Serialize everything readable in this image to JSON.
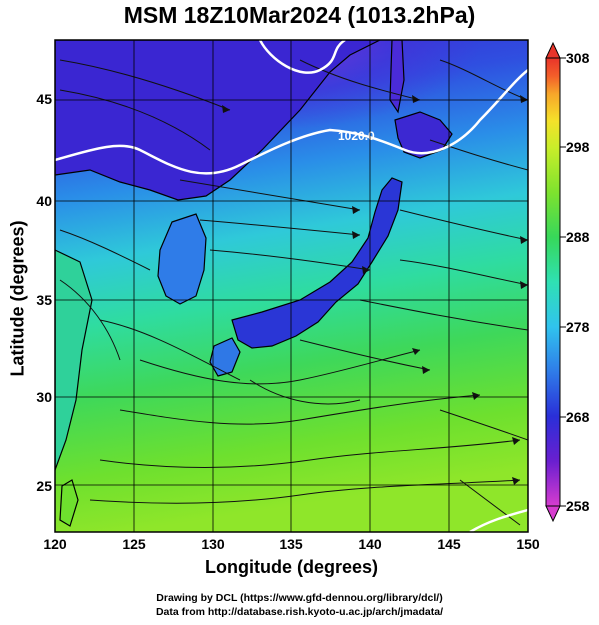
{
  "title": "MSM 18Z10Mar2024 (1013.2hPa)",
  "xlabel": "Longitude (degrees)",
  "ylabel": "Latitude  (degrees)",
  "x_ticks": [
    "120",
    "125",
    "130",
    "135",
    "140",
    "145",
    "150"
  ],
  "y_ticks": [
    "25",
    "30",
    "35",
    "40",
    "45"
  ],
  "colorbar": {
    "ticks": [
      "258",
      "268",
      "278",
      "288",
      "298",
      "308"
    ],
    "colors": [
      "#d63ccf",
      "#6a1fd0",
      "#2a2fd8",
      "#2f7ce8",
      "#30c3ee",
      "#2fe0b3",
      "#37d85a",
      "#7ee22e",
      "#c9ee2a",
      "#f5e12a",
      "#f7a62a",
      "#f35e2a",
      "#e8342a"
    ]
  },
  "contour_label": "1020.0",
  "credit_line1": "Drawing by DCL (https://www.gfd-dennou.org/library/dcl/)",
  "credit_line2": "Data from http://database.rish.kyoto-u.ac.jp/arch/jmadata/",
  "chart_data": {
    "type": "heatmap",
    "title": "MSM 18Z10Mar2024 (1013.2hPa)",
    "xlabel": "Longitude (degrees)",
    "ylabel": "Latitude  (degrees)",
    "xlim": [
      120,
      150
    ],
    "ylim": [
      22.4,
      47.6
    ],
    "color_range": [
      258,
      308
    ],
    "overlays": [
      "temperature shading",
      "streamlines",
      "coastlines",
      "contour 1020.0"
    ]
  }
}
